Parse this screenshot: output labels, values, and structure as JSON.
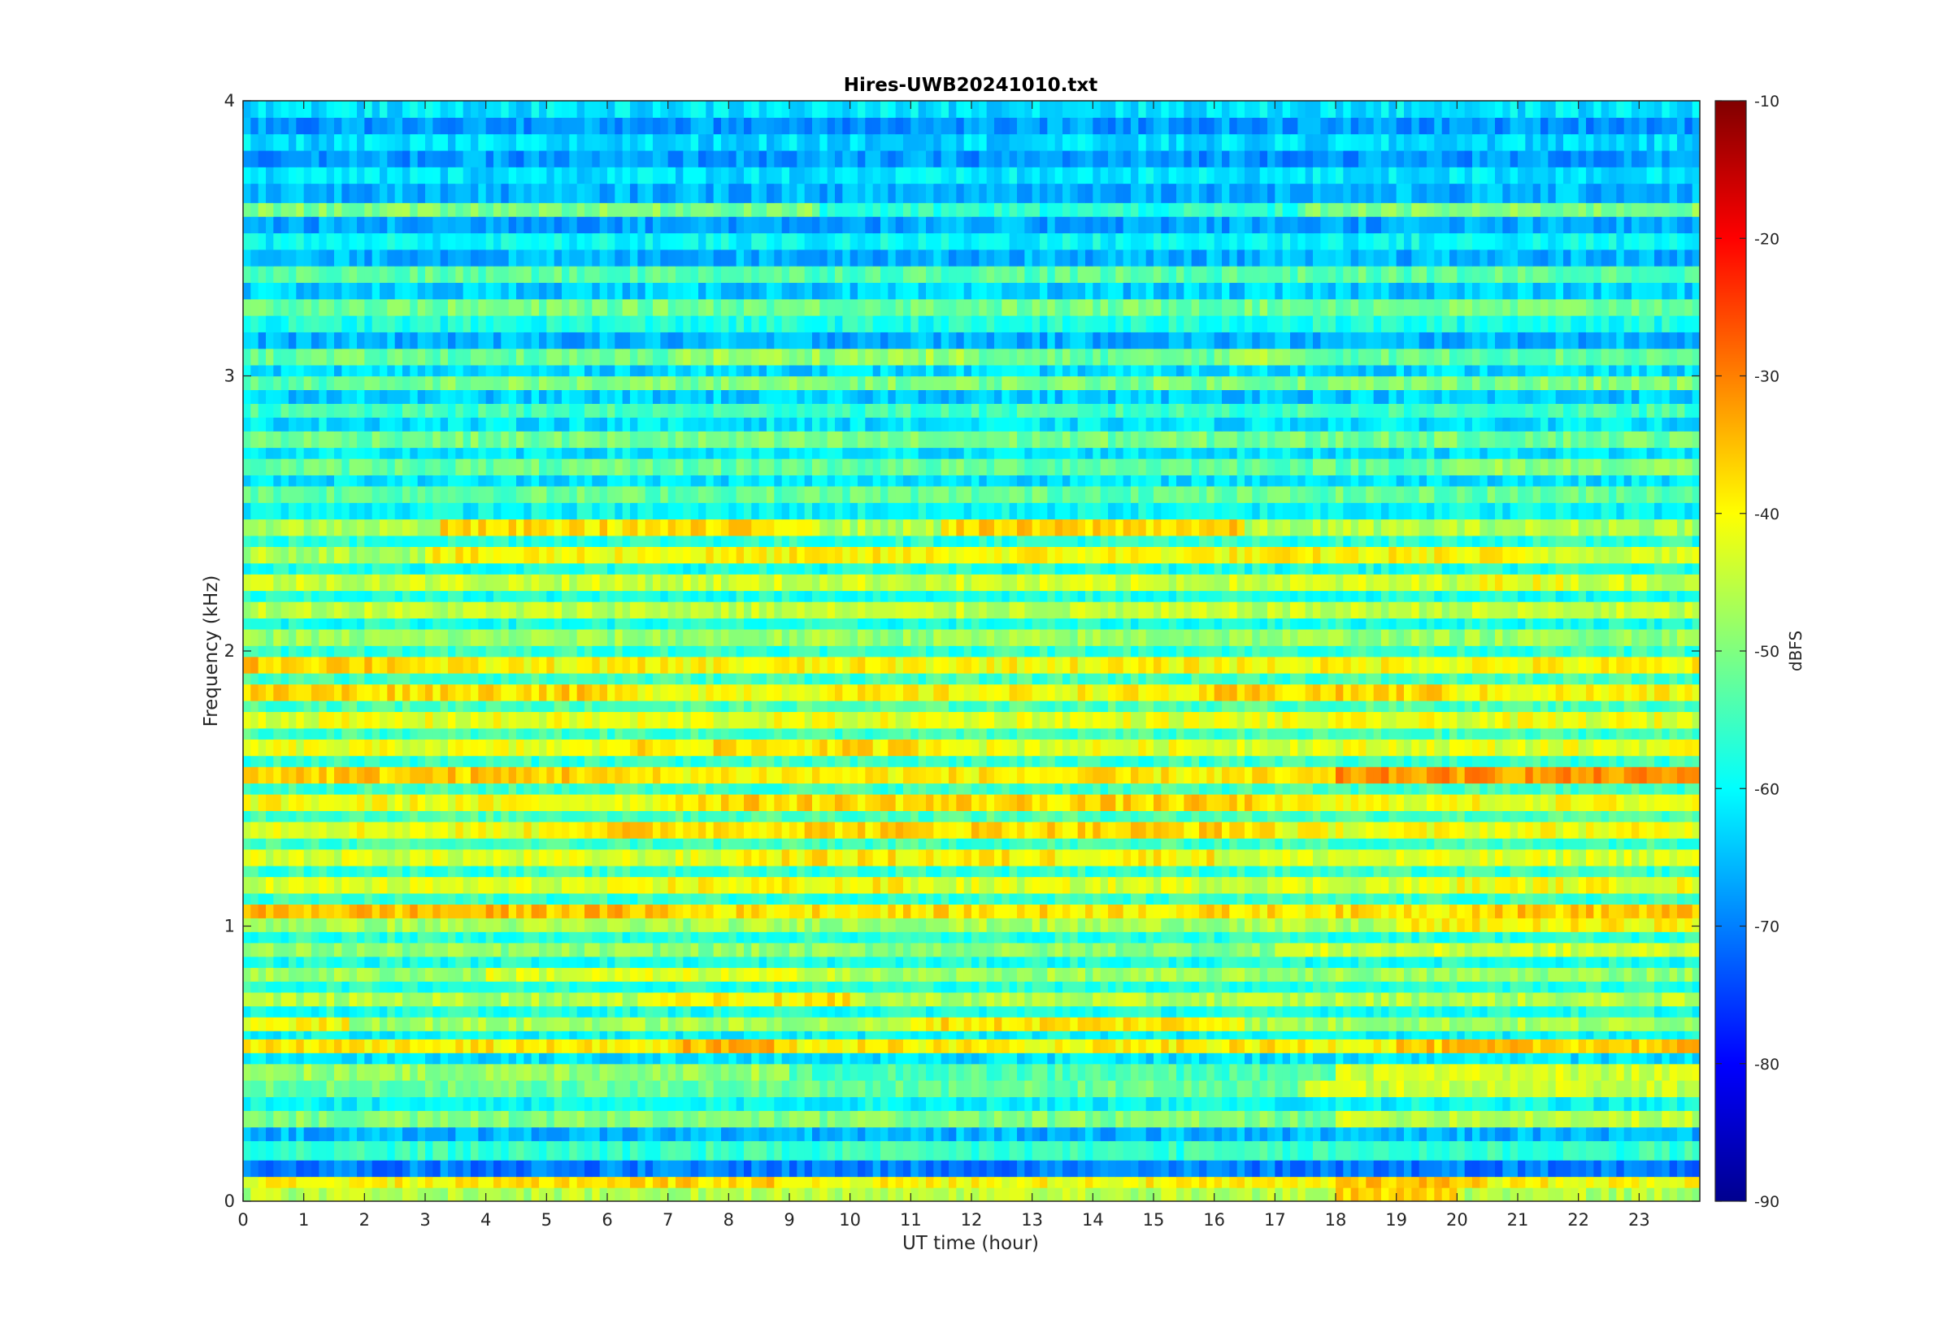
{
  "chart_data": {
    "type": "heatmap",
    "title": "Hires-UWB20241010.txt",
    "xlabel": "UT time (hour)",
    "ylabel": "Frequency (kHz)",
    "colorbar_label": "dBFS",
    "xlim": [
      0,
      24
    ],
    "ylim": [
      0,
      4
    ],
    "clim": [
      -90,
      -10
    ],
    "colormap": "jet",
    "x_ticks": [
      0,
      1,
      2,
      3,
      4,
      5,
      6,
      7,
      8,
      9,
      10,
      11,
      12,
      13,
      14,
      15,
      16,
      17,
      18,
      19,
      20,
      21,
      22,
      23
    ],
    "x_tick_labels": [
      "0",
      "1",
      "2",
      "3",
      "4",
      "5",
      "6",
      "7",
      "8",
      "9",
      "10",
      "11",
      "12",
      "13",
      "14",
      "15",
      "16",
      "17",
      "18",
      "19",
      "20",
      "21",
      "22",
      "23"
    ],
    "y_ticks": [
      0,
      1,
      2,
      3,
      4
    ],
    "y_tick_labels": [
      "0",
      "1",
      "2",
      "3",
      "4"
    ],
    "colorbar_ticks": [
      -90,
      -80,
      -70,
      -60,
      -50,
      -40,
      -30,
      -20,
      -10
    ],
    "colorbar_tick_labels": [
      "-90",
      "-80",
      "-70",
      "-60",
      "-50",
      "-40",
      "-30",
      "-20",
      "-10"
    ],
    "grid": false,
    "bands": [
      {
        "freq_khz": [
          0.0,
          0.05
        ],
        "level_dbfs": -46,
        "segments": [
          [
            18,
            20,
            -36
          ]
        ]
      },
      {
        "freq_khz": [
          0.05,
          0.09
        ],
        "level_dbfs": -40,
        "segments": [
          [
            4.5,
            9,
            -37
          ],
          [
            18,
            20.5,
            -35
          ]
        ]
      },
      {
        "freq_khz": [
          0.09,
          0.15
        ],
        "level_dbfs": -70,
        "segments": []
      },
      {
        "freq_khz": [
          0.15,
          0.22
        ],
        "level_dbfs": -56,
        "segments": []
      },
      {
        "freq_khz": [
          0.22,
          0.27
        ],
        "level_dbfs": -66,
        "segments": []
      },
      {
        "freq_khz": [
          0.27,
          0.33
        ],
        "level_dbfs": -50,
        "segments": [
          [
            18,
            24,
            -45
          ]
        ]
      },
      {
        "freq_khz": [
          0.33,
          0.38
        ],
        "level_dbfs": -60,
        "segments": []
      },
      {
        "freq_khz": [
          0.38,
          0.44
        ],
        "level_dbfs": -52,
        "segments": [
          [
            17.5,
            24,
            -44
          ]
        ]
      },
      {
        "freq_khz": [
          0.44,
          0.5
        ],
        "level_dbfs": -54,
        "segments": [
          [
            0,
            9,
            -48
          ],
          [
            18,
            24,
            -44
          ]
        ]
      },
      {
        "freq_khz": [
          0.5,
          0.54
        ],
        "level_dbfs": -62,
        "segments": []
      },
      {
        "freq_khz": [
          0.54,
          0.59
        ],
        "level_dbfs": -39,
        "segments": [
          [
            7,
            9,
            -35
          ],
          [
            19,
            24,
            -36
          ]
        ]
      },
      {
        "freq_khz": [
          0.59,
          0.62
        ],
        "level_dbfs": -60,
        "segments": []
      },
      {
        "freq_khz": [
          0.62,
          0.67
        ],
        "level_dbfs": -47,
        "segments": [
          [
            0,
            1.7,
            -40
          ],
          [
            11,
            16.5,
            -38
          ]
        ]
      },
      {
        "freq_khz": [
          0.67,
          0.71
        ],
        "level_dbfs": -58,
        "segments": []
      },
      {
        "freq_khz": [
          0.71,
          0.76
        ],
        "level_dbfs": -46,
        "segments": [
          [
            6.5,
            10,
            -39
          ]
        ]
      },
      {
        "freq_khz": [
          0.76,
          0.8
        ],
        "level_dbfs": -57,
        "segments": []
      },
      {
        "freq_khz": [
          0.8,
          0.85
        ],
        "level_dbfs": -48,
        "segments": [
          [
            4,
            10,
            -43
          ]
        ]
      },
      {
        "freq_khz": [
          0.85,
          0.89
        ],
        "level_dbfs": -58,
        "segments": []
      },
      {
        "freq_khz": [
          0.89,
          0.94
        ],
        "level_dbfs": -49,
        "segments": [
          [
            17,
            24,
            -44
          ]
        ]
      },
      {
        "freq_khz": [
          0.94,
          0.98
        ],
        "level_dbfs": -57,
        "segments": []
      },
      {
        "freq_khz": [
          0.98,
          1.03
        ],
        "level_dbfs": -47,
        "segments": [
          [
            19,
            24,
            -40
          ]
        ]
      },
      {
        "freq_khz": [
          1.03,
          1.08
        ],
        "level_dbfs": -38,
        "segments": [
          [
            0,
            7,
            -35
          ],
          [
            20,
            24,
            -36
          ]
        ]
      },
      {
        "freq_khz": [
          1.08,
          1.12
        ],
        "level_dbfs": -56,
        "segments": []
      },
      {
        "freq_khz": [
          1.12,
          1.18
        ],
        "level_dbfs": -43,
        "segments": [
          [
            7,
            11,
            -40
          ],
          [
            19.5,
            24,
            -41
          ]
        ]
      },
      {
        "freq_khz": [
          1.18,
          1.22
        ],
        "level_dbfs": -56,
        "segments": []
      },
      {
        "freq_khz": [
          1.22,
          1.28
        ],
        "level_dbfs": -43,
        "segments": [
          [
            8,
            16,
            -39
          ]
        ]
      },
      {
        "freq_khz": [
          1.28,
          1.32
        ],
        "level_dbfs": -55,
        "segments": []
      },
      {
        "freq_khz": [
          1.32,
          1.38
        ],
        "level_dbfs": -41,
        "segments": [
          [
            5,
            17,
            -37
          ]
        ]
      },
      {
        "freq_khz": [
          1.38,
          1.42
        ],
        "level_dbfs": -54,
        "segments": []
      },
      {
        "freq_khz": [
          1.42,
          1.48
        ],
        "level_dbfs": -41,
        "segments": [
          [
            7,
            17,
            -37
          ]
        ]
      },
      {
        "freq_khz": [
          1.48,
          1.52
        ],
        "level_dbfs": -55,
        "segments": []
      },
      {
        "freq_khz": [
          1.52,
          1.58
        ],
        "level_dbfs": -39,
        "segments": [
          [
            0,
            6,
            -36
          ],
          [
            18,
            24,
            -32
          ]
        ]
      },
      {
        "freq_khz": [
          1.58,
          1.62
        ],
        "level_dbfs": -56,
        "segments": []
      },
      {
        "freq_khz": [
          1.62,
          1.68
        ],
        "level_dbfs": -42,
        "segments": [
          [
            6,
            12,
            -38
          ]
        ]
      },
      {
        "freq_khz": [
          1.68,
          1.72
        ],
        "level_dbfs": -55,
        "segments": []
      },
      {
        "freq_khz": [
          1.72,
          1.78
        ],
        "level_dbfs": -42,
        "segments": []
      },
      {
        "freq_khz": [
          1.78,
          1.82
        ],
        "level_dbfs": -54,
        "segments": []
      },
      {
        "freq_khz": [
          1.82,
          1.88
        ],
        "level_dbfs": -40,
        "segments": [
          [
            0,
            6,
            -37
          ],
          [
            16,
            20,
            -37
          ]
        ]
      },
      {
        "freq_khz": [
          1.88,
          1.92
        ],
        "level_dbfs": -55,
        "segments": []
      },
      {
        "freq_khz": [
          1.92,
          1.98
        ],
        "level_dbfs": -40,
        "segments": [
          [
            0,
            3,
            -36
          ]
        ]
      },
      {
        "freq_khz": [
          1.98,
          2.02
        ],
        "level_dbfs": -56,
        "segments": []
      },
      {
        "freq_khz": [
          2.02,
          2.08
        ],
        "level_dbfs": -48,
        "segments": []
      },
      {
        "freq_khz": [
          2.08,
          2.12
        ],
        "level_dbfs": -58,
        "segments": []
      },
      {
        "freq_khz": [
          2.12,
          2.18
        ],
        "level_dbfs": -45,
        "segments": []
      },
      {
        "freq_khz": [
          2.18,
          2.22
        ],
        "level_dbfs": -58,
        "segments": []
      },
      {
        "freq_khz": [
          2.22,
          2.28
        ],
        "level_dbfs": -44,
        "segments": [
          [
            20,
            22,
            -41
          ]
        ]
      },
      {
        "freq_khz": [
          2.28,
          2.32
        ],
        "level_dbfs": -58,
        "segments": []
      },
      {
        "freq_khz": [
          2.32,
          2.38
        ],
        "level_dbfs": -43,
        "segments": [
          [
            0,
            3,
            -46
          ],
          [
            3,
            21,
            -40
          ]
        ]
      },
      {
        "freq_khz": [
          2.38,
          2.42
        ],
        "level_dbfs": -57,
        "segments": []
      },
      {
        "freq_khz": [
          2.42,
          2.48
        ],
        "level_dbfs": -46,
        "segments": [
          [
            3.2,
            9.5,
            -38
          ],
          [
            11.5,
            16.5,
            -37
          ]
        ]
      },
      {
        "freq_khz": [
          2.48,
          2.54
        ],
        "level_dbfs": -60,
        "segments": []
      },
      {
        "freq_khz": [
          2.54,
          2.6
        ],
        "level_dbfs": -52,
        "segments": []
      },
      {
        "freq_khz": [
          2.6,
          2.64
        ],
        "level_dbfs": -62,
        "segments": []
      },
      {
        "freq_khz": [
          2.64,
          2.7
        ],
        "level_dbfs": -52,
        "segments": [
          [
            20,
            24,
            -49
          ]
        ]
      },
      {
        "freq_khz": [
          2.7,
          2.74
        ],
        "level_dbfs": -62,
        "segments": []
      },
      {
        "freq_khz": [
          2.74,
          2.8
        ],
        "level_dbfs": -51,
        "segments": []
      },
      {
        "freq_khz": [
          2.8,
          2.85
        ],
        "level_dbfs": -62,
        "segments": []
      },
      {
        "freq_khz": [
          2.85,
          2.9
        ],
        "level_dbfs": -55,
        "segments": []
      },
      {
        "freq_khz": [
          2.9,
          2.95
        ],
        "level_dbfs": -64,
        "segments": []
      },
      {
        "freq_khz": [
          2.95,
          3.0
        ],
        "level_dbfs": -50,
        "segments": [
          [
            0,
            3,
            -53
          ]
        ]
      },
      {
        "freq_khz": [
          3.0,
          3.04
        ],
        "level_dbfs": -63,
        "segments": []
      },
      {
        "freq_khz": [
          3.04,
          3.1
        ],
        "level_dbfs": -52,
        "segments": [
          [
            7,
            12,
            -48
          ],
          [
            16,
            17.5,
            -48
          ]
        ]
      },
      {
        "freq_khz": [
          3.1,
          3.16
        ],
        "level_dbfs": -66,
        "segments": []
      },
      {
        "freq_khz": [
          3.16,
          3.22
        ],
        "level_dbfs": -58,
        "segments": []
      },
      {
        "freq_khz": [
          3.22,
          3.28
        ],
        "level_dbfs": -51,
        "segments": []
      },
      {
        "freq_khz": [
          3.28,
          3.34
        ],
        "level_dbfs": -64,
        "segments": []
      },
      {
        "freq_khz": [
          3.34,
          3.4
        ],
        "level_dbfs": -53,
        "segments": []
      },
      {
        "freq_khz": [
          3.4,
          3.46
        ],
        "level_dbfs": -66,
        "segments": []
      },
      {
        "freq_khz": [
          3.46,
          3.52
        ],
        "level_dbfs": -60,
        "segments": []
      },
      {
        "freq_khz": [
          3.52,
          3.58
        ],
        "level_dbfs": -67,
        "segments": []
      },
      {
        "freq_khz": [
          3.58,
          3.63
        ],
        "level_dbfs": -50,
        "segments": [
          [
            9.5,
            17.5,
            -57
          ]
        ]
      },
      {
        "freq_khz": [
          3.63,
          3.7
        ],
        "level_dbfs": -66,
        "segments": []
      },
      {
        "freq_khz": [
          3.7,
          3.76
        ],
        "level_dbfs": -62,
        "segments": []
      },
      {
        "freq_khz": [
          3.76,
          3.82
        ],
        "level_dbfs": -68,
        "segments": []
      },
      {
        "freq_khz": [
          3.82,
          3.88
        ],
        "level_dbfs": -63,
        "segments": []
      },
      {
        "freq_khz": [
          3.88,
          3.94
        ],
        "level_dbfs": -68,
        "segments": []
      },
      {
        "freq_khz": [
          3.94,
          4.0
        ],
        "level_dbfs": -62,
        "segments": []
      }
    ]
  }
}
